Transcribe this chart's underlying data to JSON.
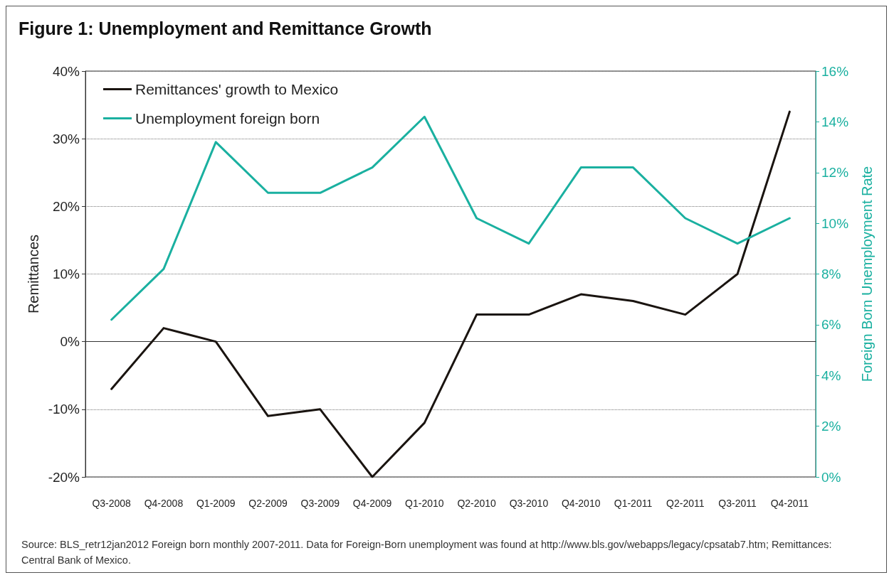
{
  "chart_data": {
    "type": "line",
    "title": "Figure 1: Unemployment and Remittance Growth",
    "ylabel": "Remittances",
    "y2label": "Foreign Born Unemployment Rate",
    "annotations": [
      "Source: BLS_retr12jan2012 Foreign born monthly 2007-2011. Data for Foreign-Born unemployment was found at http://www.bls.gov/webapps/legacy/cpsatab7.htm; Remittances: Central Bank of Mexico."
    ],
    "categories": [
      "Q3-2008",
      "Q4-2008",
      "Q1-2009",
      "Q2-2009",
      "Q3-2009",
      "Q4-2009",
      "Q1-2010",
      "Q2-2010",
      "Q3-2010",
      "Q4-2010",
      "Q1-2011",
      "Q2-2011",
      "Q3-2011",
      "Q4-2011"
    ],
    "series": [
      {
        "name": "Remittances' growth to Mexico",
        "color": "#1a1410",
        "values": [
          -7,
          2,
          0,
          -11,
          -10,
          -20,
          -12,
          4,
          4,
          7,
          6,
          4,
          10,
          34
        ]
      },
      {
        "name": "Unemployment foreign born",
        "color": "#1ab0a0",
        "axis": "y2",
        "values": [
          6.2,
          8.2,
          13.2,
          11.2,
          11.2,
          12.2,
          14.2,
          10.2,
          9.2,
          12.2,
          12.2,
          10.2,
          9.2,
          10.2
        ]
      }
    ],
    "ylim": [
      -20,
      40
    ],
    "yticks": [
      {
        "value": -20,
        "label": "-20%"
      },
      {
        "value": -10,
        "label": "-10%"
      },
      {
        "value": 0,
        "label": "0%"
      },
      {
        "value": 10,
        "label": "10%"
      },
      {
        "value": 20,
        "label": "20%"
      },
      {
        "value": 30,
        "label": "30%"
      },
      {
        "value": 40,
        "label": "40%"
      }
    ],
    "y2lim": [
      0,
      16
    ],
    "y2ticks": [
      {
        "value": 0,
        "label": "0%"
      },
      {
        "value": 2,
        "label": "2%"
      },
      {
        "value": 4,
        "label": "4%"
      },
      {
        "value": 6,
        "label": "6%"
      },
      {
        "value": 8,
        "label": "8%"
      },
      {
        "value": 10,
        "label": "10%"
      },
      {
        "value": 12,
        "label": "12%"
      },
      {
        "value": 14,
        "label": "14%"
      },
      {
        "value": 16,
        "label": "16%"
      }
    ],
    "grid": "y",
    "legend": "top left",
    "marker": "none",
    "line_style": "solid"
  }
}
